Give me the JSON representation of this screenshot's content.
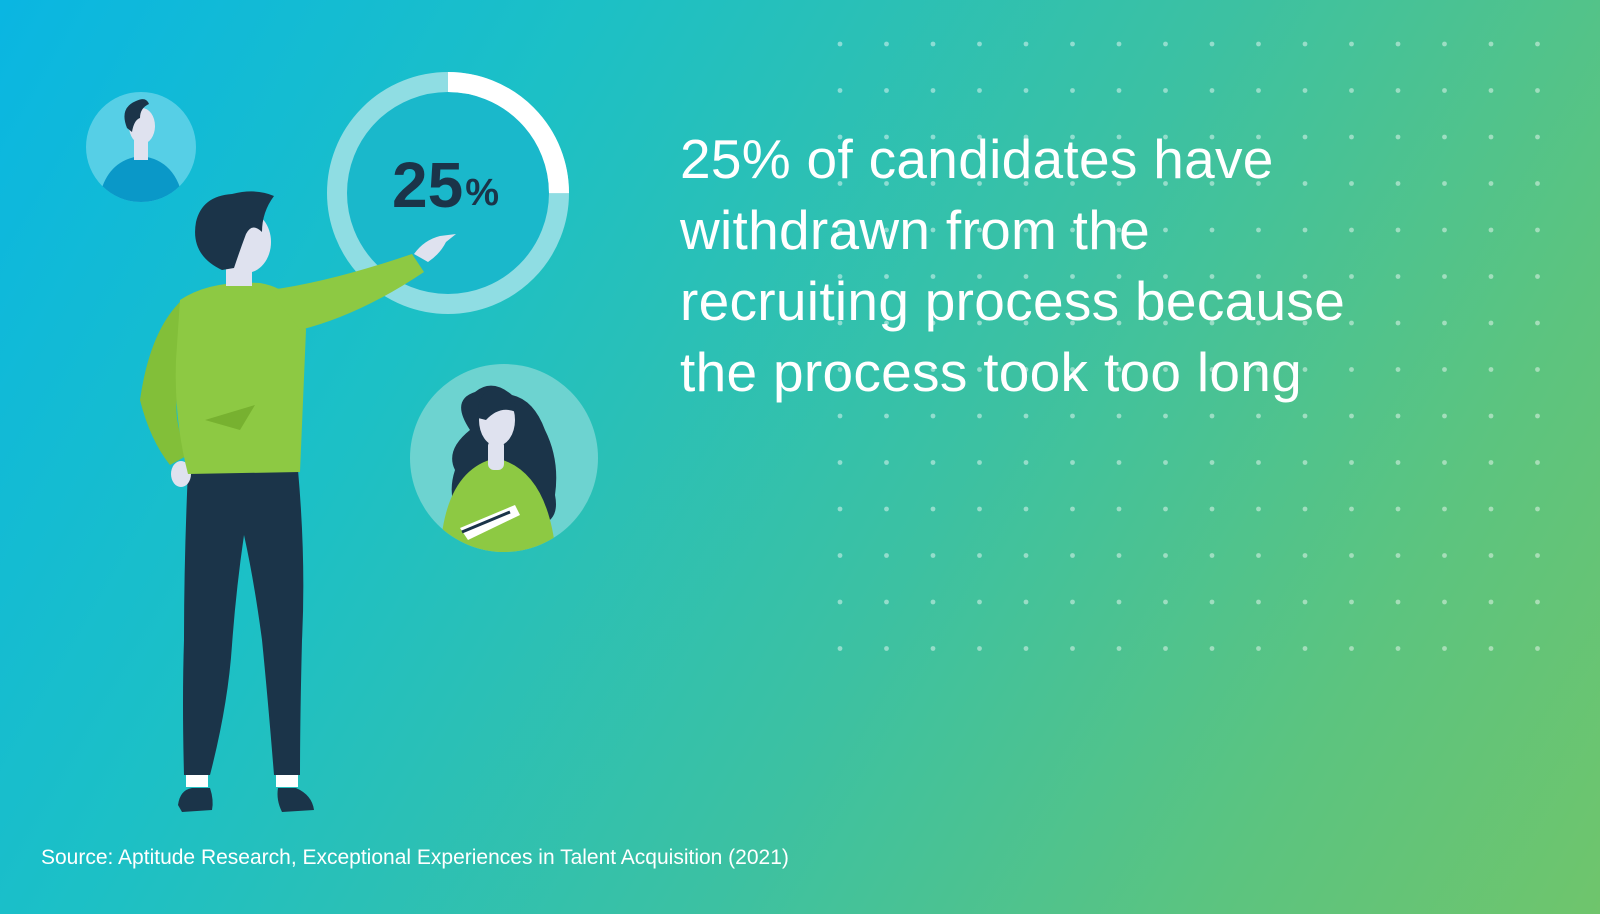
{
  "headline": {
    "lines": [
      "25% of candidates have",
      "withdrawn from the",
      "recruiting process because",
      "the process took too long"
    ]
  },
  "stat": {
    "value": "25",
    "symbol": "%",
    "fraction": 0.25
  },
  "source": "Source: Aptitude Research, Exceptional Experiences in Talent Acquisition (2021)",
  "colors": {
    "gradient_start": "#0ab6e2",
    "gradient_end": "#6fc56c",
    "shirt": "#8dc943",
    "pants": "#1b3449",
    "ring_track": "#8fdde3",
    "ring_fill": "#ffffff",
    "stat_text": "#1b3449"
  },
  "icons": [
    "man-avatar-icon",
    "woman-avatar-icon",
    "pointing-person-illustration",
    "progress-ring-icon"
  ]
}
